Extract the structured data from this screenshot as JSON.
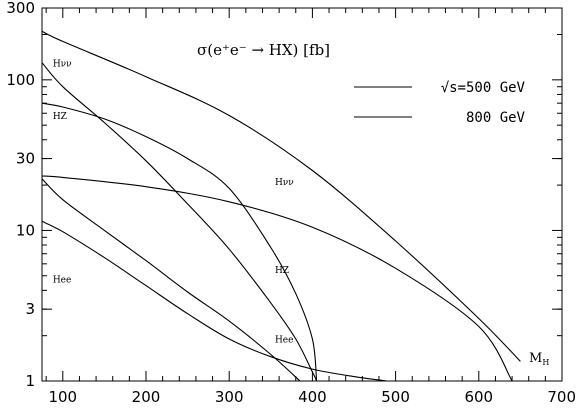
{
  "chart_data": {
    "type": "line",
    "title": "σ(e⁺e⁻ → HX) [fb]",
    "xlabel": "M_H",
    "ylabel": "",
    "xlim": [
      75,
      700
    ],
    "ylim": [
      1,
      300
    ],
    "yscale": "log",
    "grid": false,
    "legend_position": "top-right",
    "x_ticks": [
      100,
      200,
      300,
      400,
      500,
      600,
      700
    ],
    "y_ticks": [
      1,
      3,
      10,
      30,
      100,
      300
    ],
    "x_minor_step": 20,
    "legend": [
      {
        "label": "√s=500 GeV",
        "energy": 500
      },
      {
        "label": "800 GeV",
        "energy": 800
      }
    ],
    "series": [
      {
        "process": "Hνν",
        "energy": 500,
        "x": [
          75,
          100,
          150,
          200,
          250,
          300,
          350,
          380,
          400,
          405
        ],
        "y": [
          130,
          90,
          52,
          29,
          15,
          7.5,
          3.3,
          1.9,
          1.15,
          1.0
        ]
      },
      {
        "process": "HZ",
        "energy": 500,
        "x": [
          75,
          100,
          150,
          200,
          250,
          300,
          350,
          380,
          400,
          405
        ],
        "y": [
          70,
          66,
          55,
          42,
          30,
          19,
          7.7,
          3.8,
          1.9,
          1.0
        ]
      },
      {
        "process": "Hee",
        "energy": 500,
        "x": [
          75,
          100,
          150,
          200,
          250,
          300,
          350,
          385
        ],
        "y": [
          22,
          16,
          10,
          6.3,
          3.9,
          2.5,
          1.5,
          1.0
        ]
      },
      {
        "process": "Hνν",
        "energy": 800,
        "x": [
          75,
          100,
          200,
          300,
          400,
          500,
          600,
          650
        ],
        "y": [
          210,
          180,
          105,
          58,
          25,
          8.5,
          2.6,
          1.35
        ]
      },
      {
        "process": "HZ",
        "energy": 800,
        "x": [
          75,
          100,
          200,
          300,
          400,
          500,
          600,
          640
        ],
        "y": [
          23,
          22.5,
          19.5,
          15.5,
          10.5,
          5.6,
          2.3,
          1.0
        ]
      },
      {
        "process": "Hee",
        "energy": 800,
        "x": [
          75,
          100,
          150,
          200,
          250,
          300,
          350,
          400,
          450,
          490
        ],
        "y": [
          11.5,
          9.8,
          6.6,
          4.3,
          2.8,
          1.9,
          1.45,
          1.2,
          1.07,
          1.0
        ]
      }
    ],
    "annotations": [
      {
        "text": "Hνν",
        "x": 88,
        "y": 123
      },
      {
        "text": "HZ",
        "x": 88,
        "y": 55
      },
      {
        "text": "Hee",
        "x": 88,
        "y": 4.5
      },
      {
        "text": "Hνν",
        "x": 355,
        "y": 20
      },
      {
        "text": "HZ",
        "x": 355,
        "y": 5.2
      },
      {
        "text": "Hee",
        "x": 355,
        "y": 1.8
      }
    ]
  }
}
